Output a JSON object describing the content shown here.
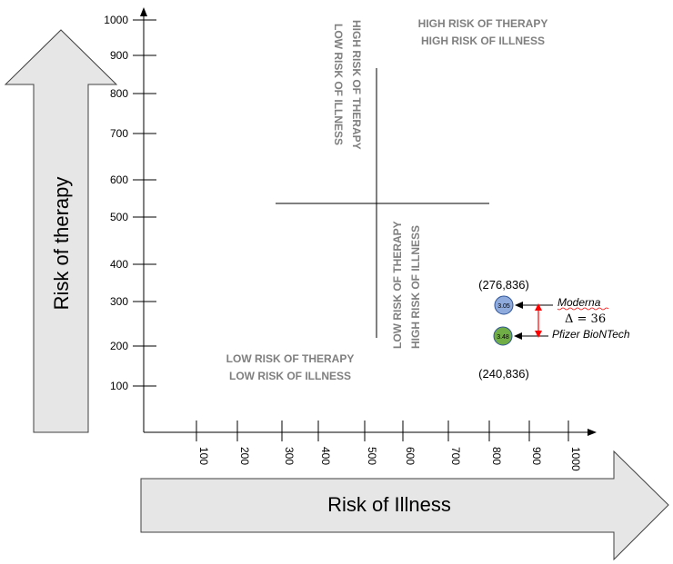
{
  "axis_labels": {
    "y": "Risk of therapy",
    "x": "Risk of Illness"
  },
  "y_ticks": [
    "1000",
    "900",
    "800",
    "700",
    "600",
    "500",
    "400",
    "300",
    "200",
    "100"
  ],
  "x_ticks": [
    "100",
    "200",
    "300",
    "400",
    "500",
    "600",
    "700",
    "800",
    "900",
    "1000"
  ],
  "quadrants": {
    "top_right": [
      "HIGH RISK OF THERAPY",
      "HIGH RISK OF ILLNESS"
    ],
    "top_left": [
      "HIGH RISK OF THERAPY",
      "LOW RISK OF ILLNESS"
    ],
    "bottom_right": [
      "LOW RISK OF THERAPY",
      "HIGH RISK OF ILLNESS"
    ],
    "bottom_left": [
      "LOW RISK OF THERAPY",
      "LOW RISK OF ILLNESS"
    ]
  },
  "points": [
    {
      "name": "Moderna",
      "coord_label": "(276,836)",
      "value_label": "3.05",
      "color": "#8faadc"
    },
    {
      "name": "Pfizer BioNTech",
      "coord_label": "(240,836)",
      "value_label": "3.48",
      "color": "#70ad47"
    }
  ],
  "delta_label": "Δ = 36",
  "colors": {
    "arrow_fill": "#e7e6e6",
    "arrow_stroke": "#404040",
    "quadrant_text": "#7f7f7f",
    "delta_arrow": "#ff0000"
  }
}
